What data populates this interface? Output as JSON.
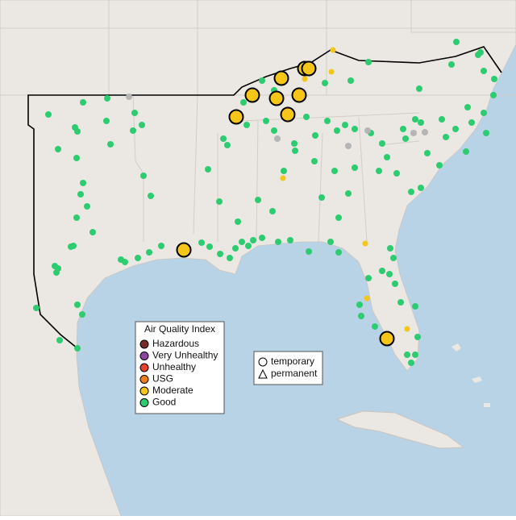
{
  "legend": {
    "title": "Air Quality Index",
    "items": [
      {
        "label": "Hazardous",
        "color": "#7b2b2b"
      },
      {
        "label": "Very Unhealthy",
        "color": "#8e44a0"
      },
      {
        "label": "Unhealthy",
        "color": "#e8412b"
      },
      {
        "label": "USG",
        "color": "#ee7d1a"
      },
      {
        "label": "Moderate",
        "color": "#f5c518"
      },
      {
        "label": "Good",
        "color": "#2ecc71"
      }
    ]
  },
  "monitor_legend": {
    "items": [
      "temporary",
      "permanent"
    ]
  }
}
